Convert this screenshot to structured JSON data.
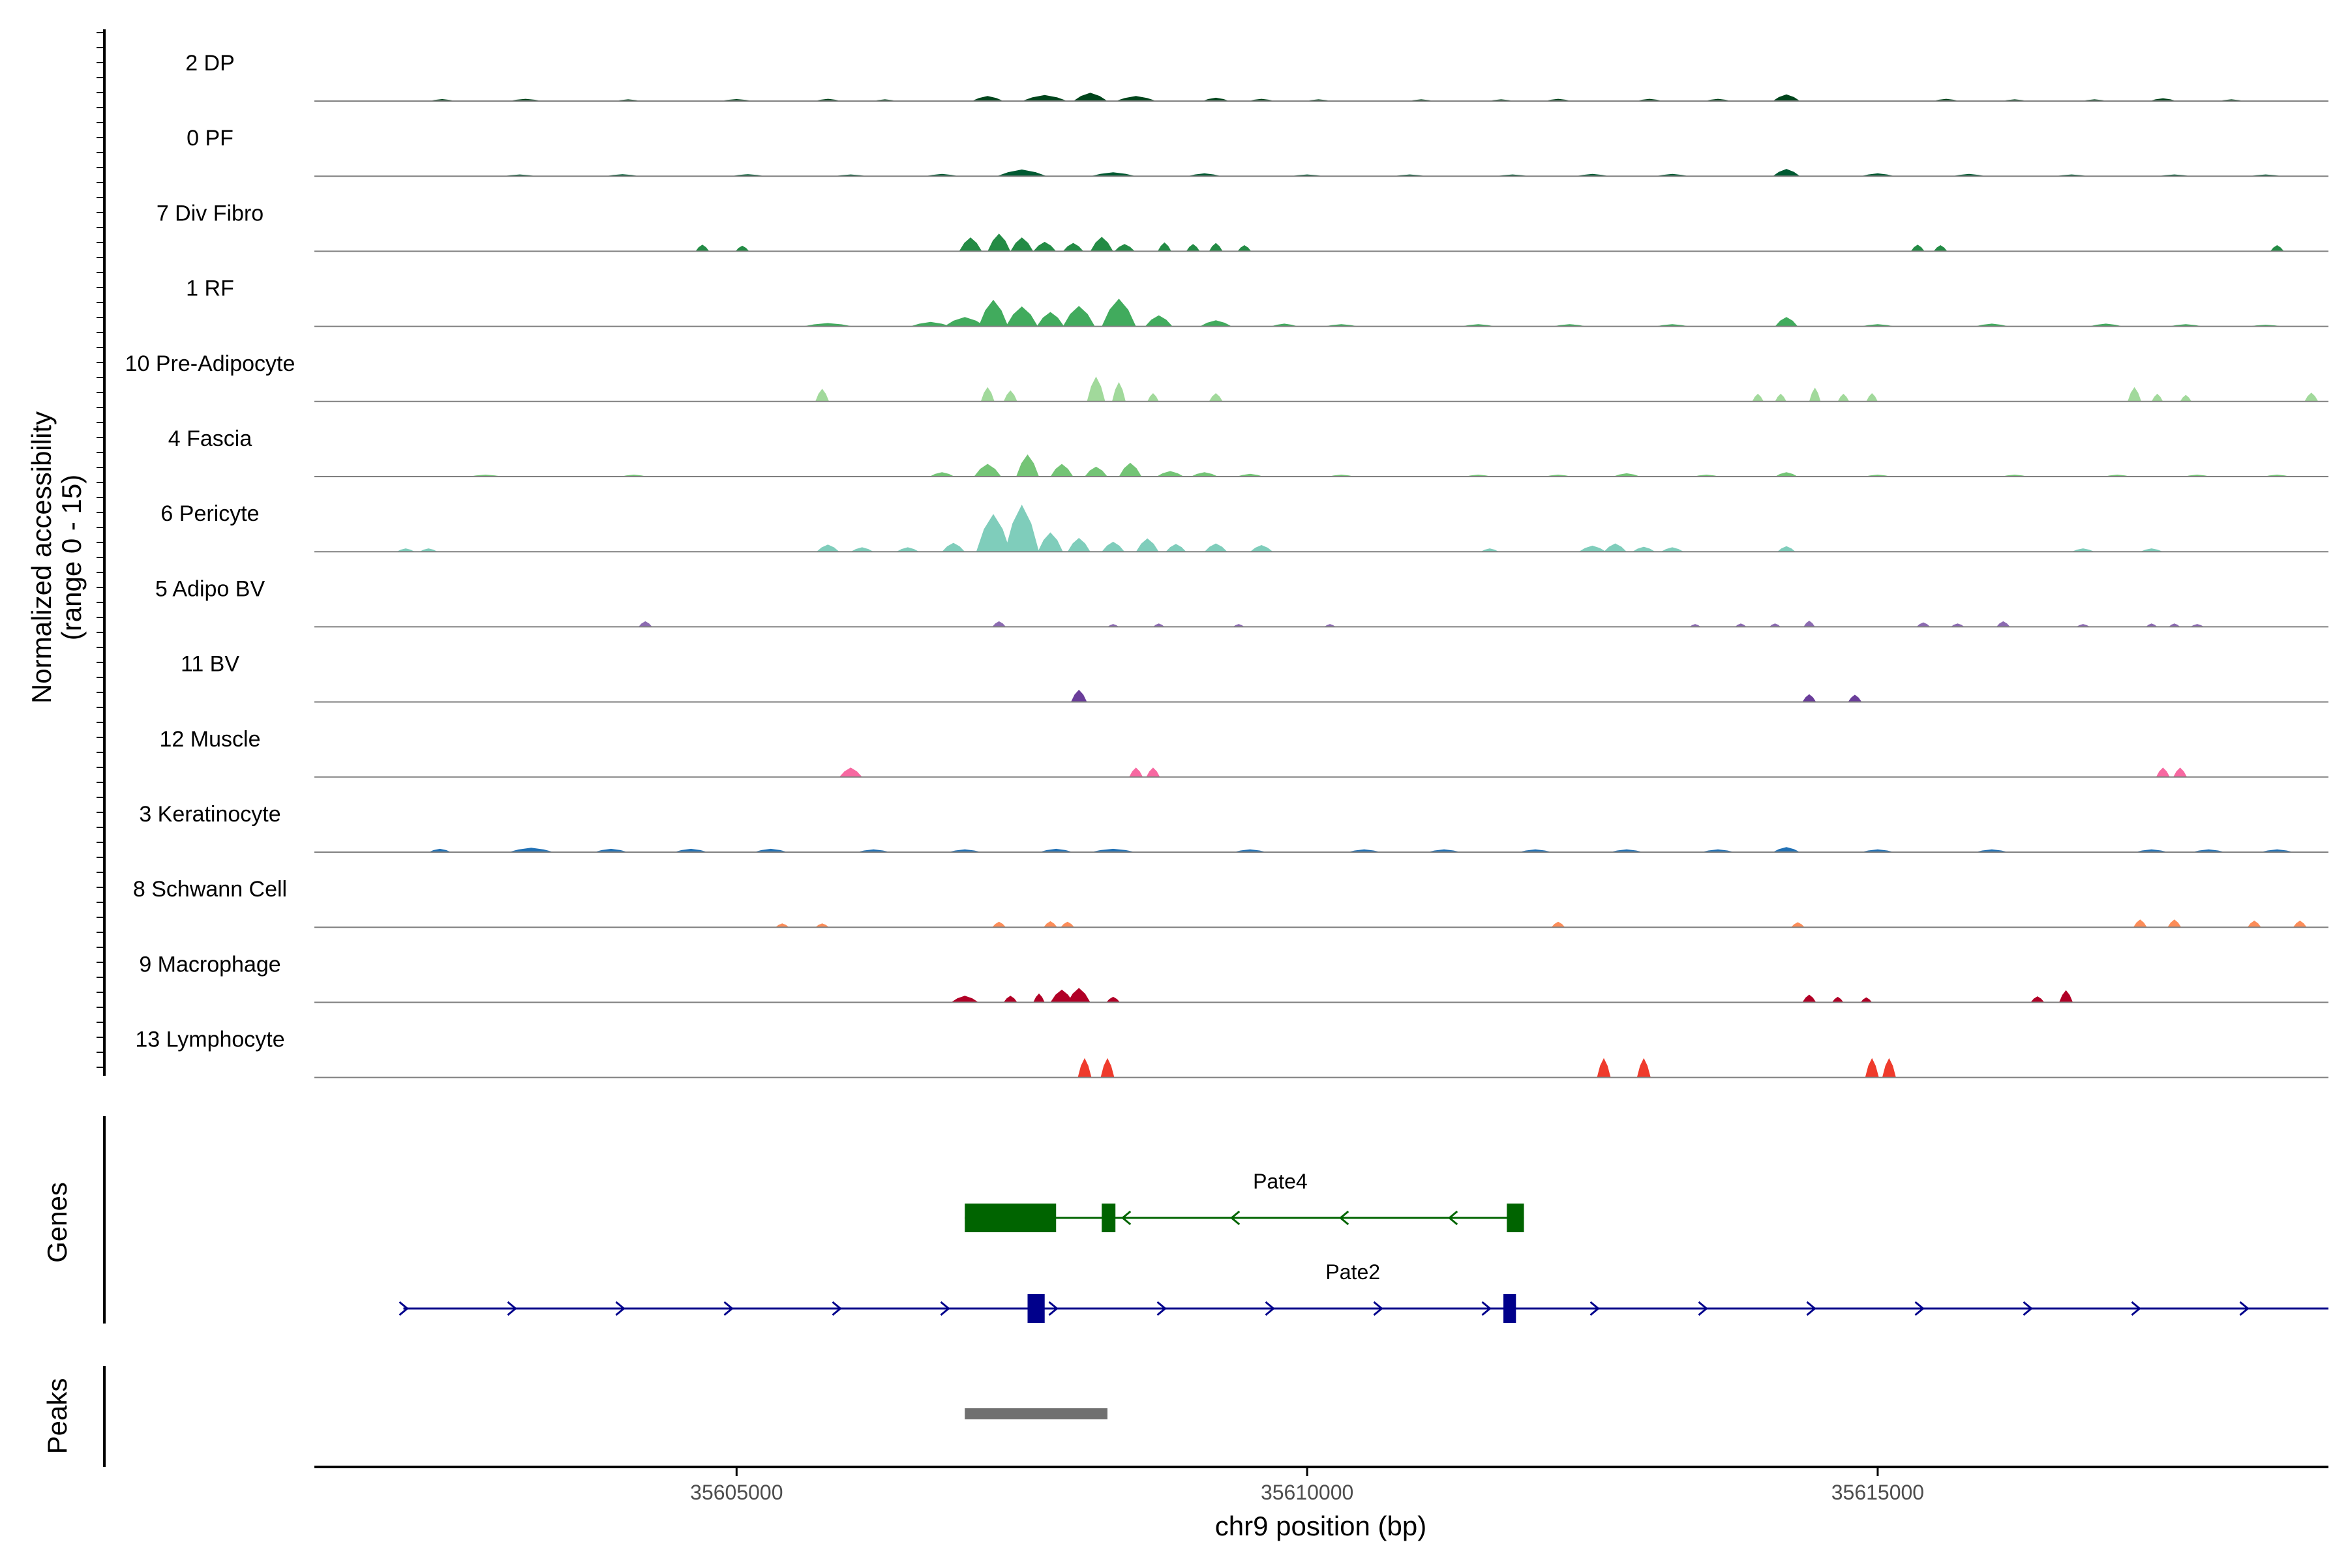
{
  "chart_data": {
    "type": "area",
    "title": "",
    "xlabel": "chr9 position (bp)",
    "ylabel_line1": "Normalized accessibility",
    "ylabel_line2": "(range 0 - 15)",
    "xlim": [
      35601300,
      35618950
    ],
    "ylim": [
      0,
      15
    ],
    "x_ticks": [
      35605000,
      35610000,
      35615000
    ],
    "x_tick_labels": [
      "35605000",
      "35610000",
      "35615000"
    ],
    "series": [
      {
        "name": "2 DP",
        "color": "#00441b",
        "peaks": [
          [
            35602420,
            120,
            0.35
          ],
          [
            35603150,
            150,
            0.4
          ],
          [
            35604050,
            120,
            0.3
          ],
          [
            35605000,
            150,
            0.35
          ],
          [
            35605800,
            120,
            0.4
          ],
          [
            35606300,
            110,
            0.3
          ],
          [
            35607200,
            140,
            0.9
          ],
          [
            35607700,
            200,
            1.1
          ],
          [
            35608100,
            150,
            1.5
          ],
          [
            35608500,
            180,
            0.9
          ],
          [
            35609200,
            120,
            0.6
          ],
          [
            35609600,
            120,
            0.4
          ],
          [
            35610100,
            120,
            0.3
          ],
          [
            35611000,
            120,
            0.3
          ],
          [
            35611700,
            120,
            0.3
          ],
          [
            35612200,
            120,
            0.4
          ],
          [
            35613000,
            120,
            0.4
          ],
          [
            35613600,
            120,
            0.4
          ],
          [
            35614200,
            120,
            1.2
          ],
          [
            35615600,
            120,
            0.4
          ],
          [
            35616200,
            120,
            0.3
          ],
          [
            35616900,
            120,
            0.3
          ],
          [
            35617500,
            120,
            0.5
          ],
          [
            35618100,
            120,
            0.3
          ]
        ]
      },
      {
        "name": "0 PF",
        "color": "#005a32",
        "peaks": [
          [
            35603100,
            150,
            0.3
          ],
          [
            35604000,
            150,
            0.35
          ],
          [
            35605100,
            150,
            0.35
          ],
          [
            35606000,
            150,
            0.3
          ],
          [
            35606800,
            150,
            0.4
          ],
          [
            35607500,
            220,
            1.2
          ],
          [
            35608300,
            200,
            0.7
          ],
          [
            35609100,
            150,
            0.5
          ],
          [
            35610000,
            150,
            0.3
          ],
          [
            35610900,
            150,
            0.3
          ],
          [
            35611800,
            150,
            0.3
          ],
          [
            35612500,
            150,
            0.4
          ],
          [
            35613200,
            150,
            0.4
          ],
          [
            35614200,
            120,
            1.3
          ],
          [
            35615000,
            150,
            0.5
          ],
          [
            35615800,
            150,
            0.4
          ],
          [
            35616700,
            150,
            0.3
          ],
          [
            35617600,
            150,
            0.3
          ],
          [
            35618400,
            150,
            0.3
          ]
        ]
      },
      {
        "name": "7 Div Fibro",
        "color": "#238b45",
        "peaks": [
          [
            35604700,
            60,
            1.2
          ],
          [
            35605050,
            60,
            1.0
          ],
          [
            35607050,
            100,
            2.5
          ],
          [
            35607300,
            100,
            3.2
          ],
          [
            35607500,
            100,
            2.5
          ],
          [
            35607700,
            100,
            1.7
          ],
          [
            35607950,
            90,
            1.5
          ],
          [
            35608200,
            100,
            2.6
          ],
          [
            35608400,
            90,
            1.3
          ],
          [
            35608750,
            60,
            1.6
          ],
          [
            35609000,
            60,
            1.3
          ],
          [
            35609200,
            60,
            1.5
          ],
          [
            35609450,
            60,
            1.1
          ],
          [
            35615350,
            60,
            1.2
          ],
          [
            35615550,
            60,
            1.1
          ],
          [
            35618500,
            60,
            1.1
          ]
        ]
      },
      {
        "name": "1 RF",
        "color": "#41ab5d",
        "peaks": [
          [
            35605800,
            220,
            0.6
          ],
          [
            35606700,
            180,
            0.8
          ],
          [
            35607000,
            180,
            1.7
          ],
          [
            35607250,
            130,
            4.8
          ],
          [
            35607500,
            140,
            3.6
          ],
          [
            35607750,
            120,
            2.6
          ],
          [
            35608000,
            140,
            3.7
          ],
          [
            35608350,
            150,
            5.0
          ],
          [
            35608700,
            120,
            2.0
          ],
          [
            35609200,
            140,
            1.1
          ],
          [
            35609800,
            120,
            0.5
          ],
          [
            35610300,
            150,
            0.4
          ],
          [
            35611500,
            150,
            0.4
          ],
          [
            35612300,
            150,
            0.4
          ],
          [
            35613200,
            150,
            0.4
          ],
          [
            35614200,
            100,
            1.7
          ],
          [
            35615000,
            150,
            0.4
          ],
          [
            35616000,
            150,
            0.5
          ],
          [
            35617000,
            150,
            0.5
          ],
          [
            35617700,
            150,
            0.4
          ],
          [
            35618400,
            150,
            0.3
          ]
        ]
      },
      {
        "name": "10 Pre-Adipocyte",
        "color": "#a1d99b",
        "peaks": [
          [
            35605750,
            60,
            2.3
          ],
          [
            35607200,
            60,
            2.6
          ],
          [
            35607400,
            60,
            2.0
          ],
          [
            35608150,
            80,
            4.5
          ],
          [
            35608350,
            60,
            3.5
          ],
          [
            35608650,
            50,
            1.5
          ],
          [
            35609200,
            60,
            1.5
          ],
          [
            35613950,
            50,
            1.4
          ],
          [
            35614150,
            50,
            1.4
          ],
          [
            35614450,
            50,
            2.5
          ],
          [
            35614700,
            50,
            1.4
          ],
          [
            35614950,
            50,
            1.5
          ],
          [
            35617250,
            60,
            2.6
          ],
          [
            35617450,
            50,
            1.4
          ],
          [
            35617700,
            50,
            1.2
          ],
          [
            35618800,
            60,
            1.6
          ]
        ]
      },
      {
        "name": "4 Fascia",
        "color": "#74c476",
        "peaks": [
          [
            35602800,
            150,
            0.35
          ],
          [
            35604100,
            120,
            0.35
          ],
          [
            35606800,
            110,
            0.8
          ],
          [
            35607200,
            120,
            2.3
          ],
          [
            35607550,
            100,
            4.0
          ],
          [
            35607850,
            100,
            2.3
          ],
          [
            35608150,
            100,
            1.8
          ],
          [
            35608450,
            100,
            2.5
          ],
          [
            35608800,
            120,
            1.0
          ],
          [
            35609100,
            120,
            0.8
          ],
          [
            35609500,
            120,
            0.5
          ],
          [
            35610300,
            120,
            0.35
          ],
          [
            35611500,
            120,
            0.35
          ],
          [
            35612200,
            120,
            0.35
          ],
          [
            35612800,
            120,
            0.6
          ],
          [
            35613500,
            120,
            0.35
          ],
          [
            35614200,
            100,
            0.8
          ],
          [
            35615000,
            120,
            0.35
          ],
          [
            35616200,
            120,
            0.35
          ],
          [
            35617100,
            120,
            0.35
          ],
          [
            35617800,
            120,
            0.35
          ],
          [
            35618500,
            120,
            0.35
          ]
        ]
      },
      {
        "name": "6 Pericyte",
        "color": "#7fcdbb",
        "peaks": [
          [
            35602100,
            80,
            0.6
          ],
          [
            35602300,
            80,
            0.6
          ],
          [
            35605800,
            100,
            1.3
          ],
          [
            35606100,
            100,
            0.8
          ],
          [
            35606500,
            100,
            0.8
          ],
          [
            35606900,
            100,
            1.6
          ],
          [
            35607250,
            150,
            6.8
          ],
          [
            35607500,
            150,
            8.5
          ],
          [
            35607750,
            110,
            3.5
          ],
          [
            35608000,
            100,
            2.5
          ],
          [
            35608300,
            100,
            1.8
          ],
          [
            35608600,
            100,
            2.4
          ],
          [
            35608850,
            90,
            1.4
          ],
          [
            35609200,
            100,
            1.5
          ],
          [
            35609600,
            100,
            1.2
          ],
          [
            35611600,
            80,
            0.6
          ],
          [
            35612500,
            120,
            1.1
          ],
          [
            35612700,
            100,
            1.5
          ],
          [
            35612950,
            100,
            0.9
          ],
          [
            35613200,
            100,
            0.8
          ],
          [
            35614200,
            80,
            1.0
          ],
          [
            35616800,
            100,
            0.6
          ],
          [
            35617400,
            100,
            0.6
          ]
        ]
      },
      {
        "name": "5 Adipo BV",
        "color": "#8c6bb1",
        "peaks": [
          [
            35604200,
            60,
            1.0
          ],
          [
            35607300,
            60,
            1.0
          ],
          [
            35608300,
            50,
            0.5
          ],
          [
            35608700,
            50,
            0.6
          ],
          [
            35609400,
            50,
            0.5
          ],
          [
            35610200,
            50,
            0.5
          ],
          [
            35613400,
            50,
            0.5
          ],
          [
            35613800,
            50,
            0.6
          ],
          [
            35614100,
            50,
            0.6
          ],
          [
            35614400,
            50,
            1.1
          ],
          [
            35615400,
            60,
            0.8
          ],
          [
            35615700,
            60,
            0.6
          ],
          [
            35616100,
            60,
            1.0
          ],
          [
            35616800,
            60,
            0.5
          ],
          [
            35617400,
            50,
            0.6
          ],
          [
            35617600,
            50,
            0.6
          ],
          [
            35617800,
            60,
            0.5
          ]
        ]
      },
      {
        "name": "11 BV",
        "color": "#6a3d9a",
        "peaks": [
          [
            35608000,
            70,
            2.2
          ],
          [
            35614400,
            60,
            1.4
          ],
          [
            35614800,
            60,
            1.3
          ]
        ]
      },
      {
        "name": "12 Muscle",
        "color": "#f768a1",
        "peaks": [
          [
            35606000,
            100,
            1.7
          ],
          [
            35608500,
            60,
            1.7
          ],
          [
            35608650,
            60,
            1.7
          ],
          [
            35617500,
            60,
            1.7
          ],
          [
            35617650,
            60,
            1.7
          ]
        ]
      },
      {
        "name": "3 Keratinocyte",
        "color": "#2171b5",
        "peaks": [
          [
            35602400,
            100,
            0.6
          ],
          [
            35603200,
            200,
            0.8
          ],
          [
            35603900,
            150,
            0.6
          ],
          [
            35604600,
            150,
            0.6
          ],
          [
            35605300,
            150,
            0.6
          ],
          [
            35606200,
            150,
            0.5
          ],
          [
            35607000,
            150,
            0.5
          ],
          [
            35607800,
            150,
            0.6
          ],
          [
            35608300,
            200,
            0.6
          ],
          [
            35609500,
            150,
            0.5
          ],
          [
            35610500,
            150,
            0.5
          ],
          [
            35611200,
            150,
            0.5
          ],
          [
            35612000,
            150,
            0.5
          ],
          [
            35612800,
            150,
            0.5
          ],
          [
            35613600,
            150,
            0.5
          ],
          [
            35614200,
            120,
            0.9
          ],
          [
            35615000,
            150,
            0.5
          ],
          [
            35616000,
            150,
            0.5
          ],
          [
            35617400,
            150,
            0.5
          ],
          [
            35617900,
            150,
            0.5
          ],
          [
            35618500,
            150,
            0.5
          ]
        ]
      },
      {
        "name": "8 Schwann Cell",
        "color": "#fc8d59",
        "peaks": [
          [
            35605400,
            60,
            0.7
          ],
          [
            35605750,
            60,
            0.7
          ],
          [
            35607300,
            60,
            1.0
          ],
          [
            35607750,
            60,
            1.1
          ],
          [
            35607900,
            60,
            1.0
          ],
          [
            35612200,
            60,
            1.0
          ],
          [
            35614300,
            60,
            0.9
          ],
          [
            35617300,
            60,
            1.4
          ],
          [
            35617600,
            60,
            1.4
          ],
          [
            35618300,
            60,
            1.2
          ],
          [
            35618700,
            60,
            1.2
          ]
        ]
      },
      {
        "name": "9 Macrophage",
        "color": "#b10026",
        "peaks": [
          [
            35607000,
            120,
            1.2
          ],
          [
            35607400,
            60,
            1.2
          ],
          [
            35607650,
            50,
            1.6
          ],
          [
            35607850,
            100,
            2.3
          ],
          [
            35608000,
            100,
            2.6
          ],
          [
            35608300,
            60,
            1.0
          ],
          [
            35614400,
            60,
            1.4
          ],
          [
            35614650,
            50,
            1.0
          ],
          [
            35614900,
            50,
            0.9
          ],
          [
            35616400,
            60,
            1.1
          ],
          [
            35616650,
            60,
            2.2
          ]
        ]
      },
      {
        "name": "13 Lymphocyte",
        "color": "#ef3b2c",
        "peaks": [
          [
            35608050,
            60,
            3.5
          ],
          [
            35608250,
            60,
            3.5
          ],
          [
            35612600,
            60,
            3.5
          ],
          [
            35612950,
            60,
            3.5
          ],
          [
            35614950,
            60,
            3.5
          ],
          [
            35615100,
            60,
            3.5
          ]
        ]
      }
    ],
    "genes_track_title": "Genes",
    "peaks_track_title": "Peaks",
    "genes": [
      {
        "name": "Pate4",
        "strand": "-",
        "color": "#006400",
        "start": 35607000,
        "end": 35611900,
        "exons": [
          [
            35607000,
            35607800
          ],
          [
            35608200,
            35608320
          ],
          [
            35611750,
            35611900
          ]
        ]
      },
      {
        "name": "Pate2",
        "strand": "+",
        "color": "#00008b",
        "start": 35602080,
        "end": 35619000,
        "exons": [
          [
            35607550,
            35607700
          ],
          [
            35611720,
            35611830
          ]
        ]
      }
    ],
    "peak_regions": [
      {
        "start": 35607000,
        "end": 35608250,
        "color": "#707070"
      }
    ]
  }
}
